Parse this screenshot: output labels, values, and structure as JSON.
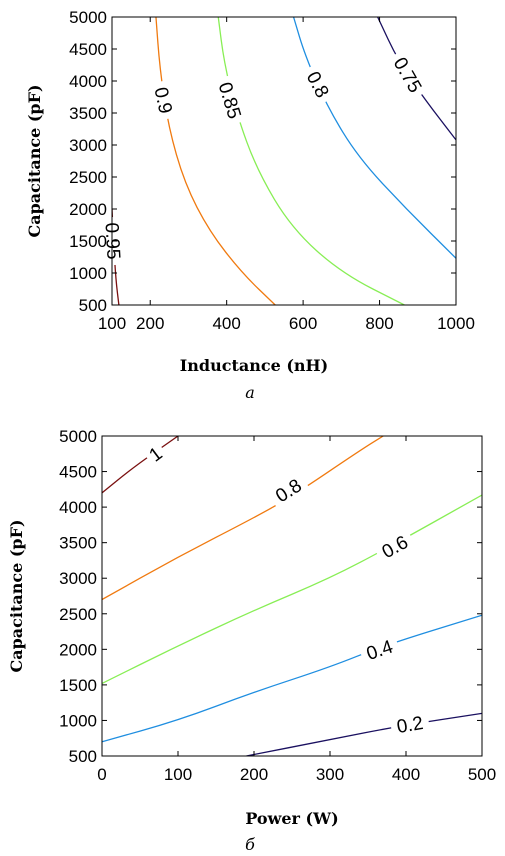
{
  "chart_data": [
    {
      "type": "contour",
      "caption": "а",
      "xlabel": "Inductance (nH)",
      "ylabel": "Capacitance (pF)",
      "xlim": [
        100,
        1000
      ],
      "ylim": [
        500,
        5000
      ],
      "xticks": [
        "100",
        "200",
        "400",
        "600",
        "800",
        "1000"
      ],
      "yticks": [
        "500",
        "1000",
        "1500",
        "2000",
        "2500",
        "3000",
        "3500",
        "4000",
        "4500",
        "5000"
      ],
      "grid": false,
      "contours": [
        {
          "level": "0.95",
          "color": "#7a1010",
          "points": [
            [
              118,
              500
            ],
            [
              110,
              900
            ],
            [
              104,
              1500
            ],
            [
              100,
              2000
            ]
          ],
          "label_at": [
            104,
            1500
          ]
        },
        {
          "level": "0.9",
          "color": "#f07a10",
          "points": [
            [
              527,
              500
            ],
            [
              440,
              1000
            ],
            [
              355,
              1650
            ],
            [
              290,
              2400
            ],
            [
              247,
              3300
            ],
            [
              225,
              4200
            ],
            [
              215,
              5000
            ]
          ],
          "label_at": [
            236,
            3700
          ]
        },
        {
          "level": "0.85",
          "color": "#88ee55",
          "points": [
            [
              865,
              500
            ],
            [
              700,
              1000
            ],
            [
              570,
              1700
            ],
            [
              480,
              2600
            ],
            [
              425,
              3500
            ],
            [
              393,
              4300
            ],
            [
              378,
              5000
            ]
          ],
          "label_at": [
            410,
            3700
          ]
        },
        {
          "level": "0.8",
          "color": "#1f8ee0",
          "points": [
            [
              1000,
              1230
            ],
            [
              870,
              2000
            ],
            [
              745,
              2800
            ],
            [
              663,
              3600
            ],
            [
              605,
              4400
            ],
            [
              575,
              5000
            ]
          ],
          "label_at": [
            640,
            3950
          ]
        },
        {
          "level": "0.75",
          "color": "#1a1060",
          "points": [
            [
              1000,
              3080
            ],
            [
              920,
              3700
            ],
            [
              850,
              4300
            ],
            [
              795,
              5000
            ]
          ],
          "label_at": [
            875,
            4100
          ]
        }
      ]
    },
    {
      "type": "contour",
      "caption": "б",
      "xlabel": "Power (W)",
      "ylabel": "Capacitance (pF)",
      "xlim": [
        0,
        500
      ],
      "ylim": [
        500,
        5000
      ],
      "xticks": [
        "0",
        "100",
        "200",
        "300",
        "400",
        "500"
      ],
      "yticks": [
        "500",
        "1000",
        "1500",
        "2000",
        "2500",
        "3000",
        "3500",
        "4000",
        "4500",
        "5000"
      ],
      "grid": false,
      "contours": [
        {
          "level": "1",
          "color": "#7a1010",
          "points": [
            [
              0,
              4200
            ],
            [
              40,
              4550
            ],
            [
              100,
              5000
            ]
          ],
          "label_at": [
            70,
            4750
          ]
        },
        {
          "level": "0.8",
          "color": "#f07a10",
          "points": [
            [
              0,
              2700
            ],
            [
              100,
              3300
            ],
            [
              200,
              3850
            ],
            [
              250,
              4150
            ],
            [
              340,
              4800
            ],
            [
              370,
              5000
            ]
          ],
          "label_at": [
            245,
            4240
          ]
        },
        {
          "level": "0.6",
          "color": "#88ee55",
          "points": [
            [
              0,
              1520
            ],
            [
              100,
              2050
            ],
            [
              200,
              2550
            ],
            [
              300,
              3000
            ],
            [
              380,
              3450
            ],
            [
              500,
              4170
            ]
          ],
          "label_at": [
            385,
            3450
          ]
        },
        {
          "level": "0.4",
          "color": "#1f8ee0",
          "points": [
            [
              0,
              700
            ],
            [
              100,
              1000
            ],
            [
              200,
              1400
            ],
            [
              300,
              1750
            ],
            [
              370,
              2050
            ],
            [
              500,
              2480
            ]
          ],
          "label_at": [
            365,
            2000
          ]
        },
        {
          "level": "0.2",
          "color": "#1a1060",
          "points": [
            [
              190,
              500
            ],
            [
              300,
              730
            ],
            [
              390,
              920
            ],
            [
              500,
              1100
            ]
          ],
          "label_at": [
            405,
            950
          ]
        }
      ]
    }
  ]
}
